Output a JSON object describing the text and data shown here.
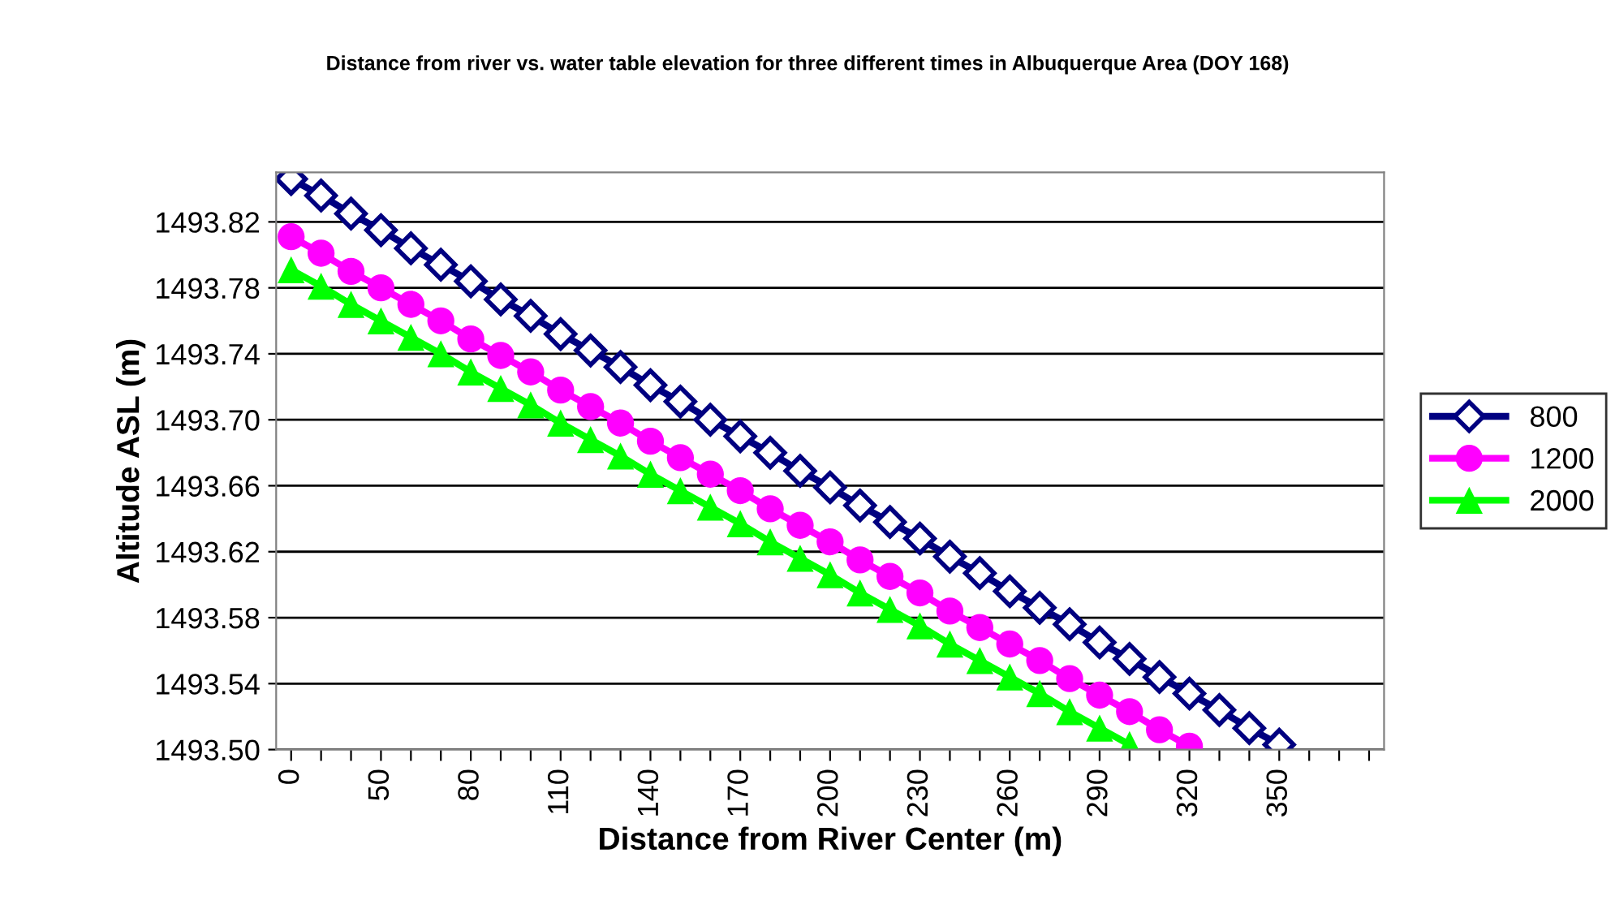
{
  "chart_data": {
    "type": "line",
    "title": "Distance from river vs. water table elevation for three different times in Albuquerque Area (DOY 168)",
    "xlabel": "Distance from River Center (m)",
    "ylabel": "Altitude ASL (m)",
    "categories": [
      "0",
      null,
      null,
      "50",
      null,
      null,
      "80",
      null,
      null,
      "110",
      null,
      null,
      "140",
      null,
      null,
      "170",
      null,
      null,
      "200",
      null,
      null,
      "230",
      null,
      null,
      "260",
      null,
      null,
      "290",
      null,
      null,
      "320",
      null,
      null,
      "350",
      null,
      null,
      null
    ],
    "series": [
      {
        "name": "800",
        "color": "#000080",
        "marker": "diamond",
        "values": [
          1493.846,
          1493.836,
          1493.825,
          1493.815,
          1493.804,
          1493.794,
          1493.784,
          1493.773,
          1493.763,
          1493.752,
          1493.742,
          1493.732,
          1493.721,
          1493.711,
          1493.7,
          1493.69,
          1493.68,
          1493.669,
          1493.659,
          1493.648,
          1493.638,
          1493.628,
          1493.617,
          1493.607,
          1493.596,
          1493.586,
          1493.576,
          1493.565,
          1493.555,
          1493.544,
          1493.534,
          1493.524,
          1493.513,
          1493.503,
          null,
          null,
          null
        ]
      },
      {
        "name": "1200",
        "color": "#ff00ff",
        "marker": "circle",
        "values": [
          1493.811,
          1493.801,
          1493.79,
          1493.78,
          1493.77,
          1493.76,
          1493.749,
          1493.739,
          1493.729,
          1493.718,
          1493.708,
          1493.698,
          1493.687,
          1493.677,
          1493.667,
          1493.657,
          1493.646,
          1493.636,
          1493.626,
          1493.615,
          1493.605,
          1493.595,
          1493.584,
          1493.574,
          1493.564,
          1493.554,
          1493.543,
          1493.533,
          1493.523,
          1493.512,
          1493.502,
          null,
          null,
          null,
          null,
          null,
          null
        ]
      },
      {
        "name": "2000",
        "color": "#00ff00",
        "marker": "triangle",
        "values": [
          1493.791,
          1493.781,
          1493.77,
          1493.76,
          1493.75,
          1493.74,
          1493.729,
          1493.719,
          1493.709,
          1493.698,
          1493.688,
          1493.678,
          1493.667,
          1493.657,
          1493.647,
          1493.637,
          1493.626,
          1493.616,
          1493.606,
          1493.595,
          1493.585,
          1493.575,
          1493.564,
          1493.554,
          1493.544,
          1493.534,
          1493.523,
          1493.513,
          1493.503,
          null,
          null,
          null,
          null,
          null,
          null,
          null,
          null
        ]
      }
    ],
    "ylim": [
      1493.5,
      1493.85
    ],
    "yticks": [
      {
        "value": 1493.5,
        "label": "1493.50"
      },
      {
        "value": 1493.54,
        "label": "1493.54"
      },
      {
        "value": 1493.58,
        "label": "1493.58"
      },
      {
        "value": 1493.62,
        "label": "1493.62"
      },
      {
        "value": 1493.66,
        "label": "1493.66"
      },
      {
        "value": 1493.7,
        "label": "1493.70"
      },
      {
        "value": 1493.74,
        "label": "1493.74"
      },
      {
        "value": 1493.78,
        "label": "1493.78"
      },
      {
        "value": 1493.82,
        "label": "1493.82"
      }
    ],
    "grid": "y",
    "legend": "right",
    "line_style": "solid"
  }
}
